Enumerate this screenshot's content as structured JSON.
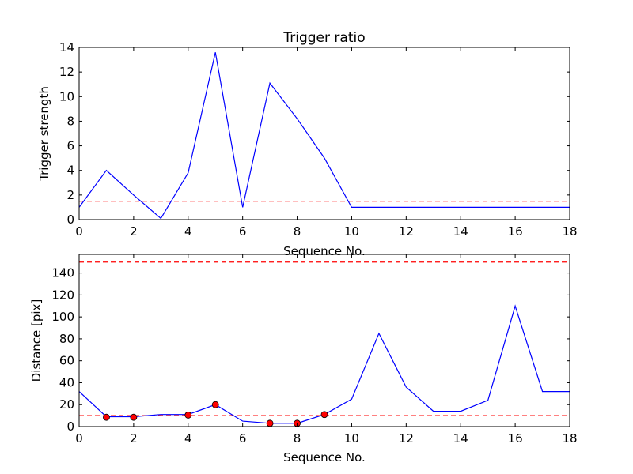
{
  "chart_data": [
    {
      "type": "line",
      "title": "Trigger ratio",
      "xlabel": "Sequence No.",
      "ylabel": "Trigger strength",
      "xlim": [
        0,
        18
      ],
      "ylim": [
        0,
        14
      ],
      "xticks": [
        0,
        2,
        4,
        6,
        8,
        10,
        12,
        14,
        16,
        18
      ],
      "yticks": [
        0,
        2,
        4,
        6,
        8,
        10,
        12,
        14
      ],
      "grid": false,
      "series": [
        {
          "color": "#0000ff",
          "style": "solid",
          "x": [
            0,
            1,
            2,
            3,
            4,
            5,
            6,
            7,
            8,
            9,
            10,
            11,
            12,
            13,
            14,
            15,
            16,
            17,
            18
          ],
          "y": [
            1.0,
            4.0,
            2.0,
            0.1,
            3.8,
            13.6,
            1.0,
            11.1,
            8.2,
            5.0,
            1.0,
            1.0,
            1.0,
            1.0,
            1.0,
            1.0,
            1.0,
            1.0,
            1.0
          ]
        }
      ],
      "hlines": [
        {
          "y": 1.5,
          "color": "#ff0000",
          "style": "dashed"
        }
      ]
    },
    {
      "type": "line",
      "xlabel": "Sequence No.",
      "ylabel": "Distance [pix]",
      "xlim": [
        0,
        18
      ],
      "ylim": [
        0,
        157
      ],
      "xticks": [
        0,
        2,
        4,
        6,
        8,
        10,
        12,
        14,
        16,
        18
      ],
      "yticks": [
        0,
        20,
        40,
        60,
        80,
        100,
        120,
        140
      ],
      "grid": false,
      "series": [
        {
          "color": "#0000ff",
          "style": "solid",
          "x": [
            0,
            1,
            2,
            3,
            4,
            5,
            6,
            7,
            8,
            9,
            10,
            11,
            12,
            13,
            14,
            15,
            16,
            17,
            18
          ],
          "y": [
            32,
            9,
            9,
            11,
            11,
            20,
            5,
            3,
            3,
            11,
            25,
            85,
            36,
            14,
            14,
            24,
            110,
            32,
            32
          ]
        }
      ],
      "markers": {
        "color": "#ff0000",
        "x": [
          1,
          2,
          4,
          5,
          7,
          8,
          9
        ],
        "y": [
          8.5,
          8.5,
          10.5,
          20,
          3,
          3,
          11
        ]
      },
      "hlines": [
        {
          "y": 10,
          "color": "#ff0000",
          "style": "dashed"
        },
        {
          "y": 150,
          "color": "#ff0000",
          "style": "dashed"
        }
      ]
    }
  ]
}
